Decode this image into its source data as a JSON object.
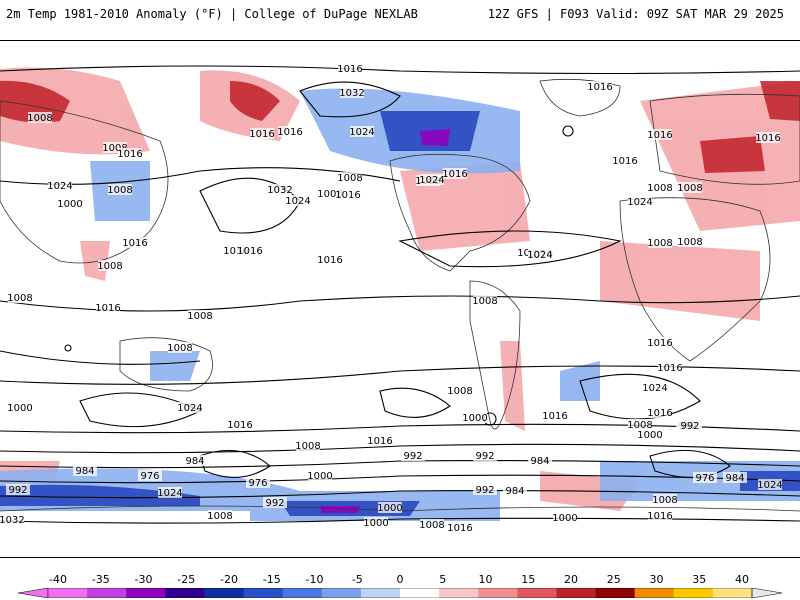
{
  "header": {
    "left_text": "2m Temp 1981-2010 Anomaly (°F) | College of DuPage NEXLAB",
    "right_text": "12Z GFS | F093 Valid: 09Z SAT MAR 29 2025"
  },
  "colorbar": {
    "ticks": [
      "-40",
      "-35",
      "-30",
      "-25",
      "-20",
      "-15",
      "-10",
      "-5",
      "0",
      "5",
      "10",
      "15",
      "20",
      "25",
      "30",
      "35",
      "40"
    ],
    "colors": [
      "#f070f0",
      "#c040e0",
      "#9000c0",
      "#300090",
      "#1030a0",
      "#2850c8",
      "#4a78e0",
      "#7aa0ec",
      "#bcd4f6",
      "#ffffff",
      "#f8c8c8",
      "#f09090",
      "#e05860",
      "#c02028",
      "#8c0000",
      "#f08c00",
      "#ffc800",
      "#ffe080"
    ]
  },
  "map": {
    "isobar_labels": [
      "1016",
      "1032",
      "1024",
      "1016",
      "1008",
      "1008",
      "1016",
      "1016",
      "1024",
      "1008",
      "1016",
      "1008",
      "1016",
      "1008",
      "1032",
      "1024",
      "1008",
      "1016",
      "1008",
      "1024",
      "1000",
      "1016",
      "1016",
      "1016",
      "1016",
      "1008",
      "1008",
      "1008",
      "1016",
      "1016",
      "1008",
      "1024",
      "1016",
      "1008",
      "1016",
      "1008",
      "1008",
      "1016",
      "1000",
      "1016",
      "1024",
      "1008",
      "1016",
      "1008",
      "1016",
      "1024",
      "1016",
      "1008",
      "1000",
      "992",
      "992",
      "992",
      "984",
      "976",
      "984",
      "1000",
      "976",
      "992",
      "1016",
      "984",
      "992",
      "1016",
      "1008",
      "1000",
      "1000",
      "1008",
      "1032",
      "992",
      "1000",
      "984",
      "1024",
      "992",
      "976",
      "984",
      "1008",
      "1016",
      "1024",
      "1000",
      "1024",
      "1016",
      "1016",
      "1008"
    ]
  },
  "colors": {
    "warm": "#f08890",
    "warm_strong": "#c02028",
    "cold": "#5a88e8",
    "cold_strong": "#2040b0",
    "land_outline": "#000000"
  }
}
